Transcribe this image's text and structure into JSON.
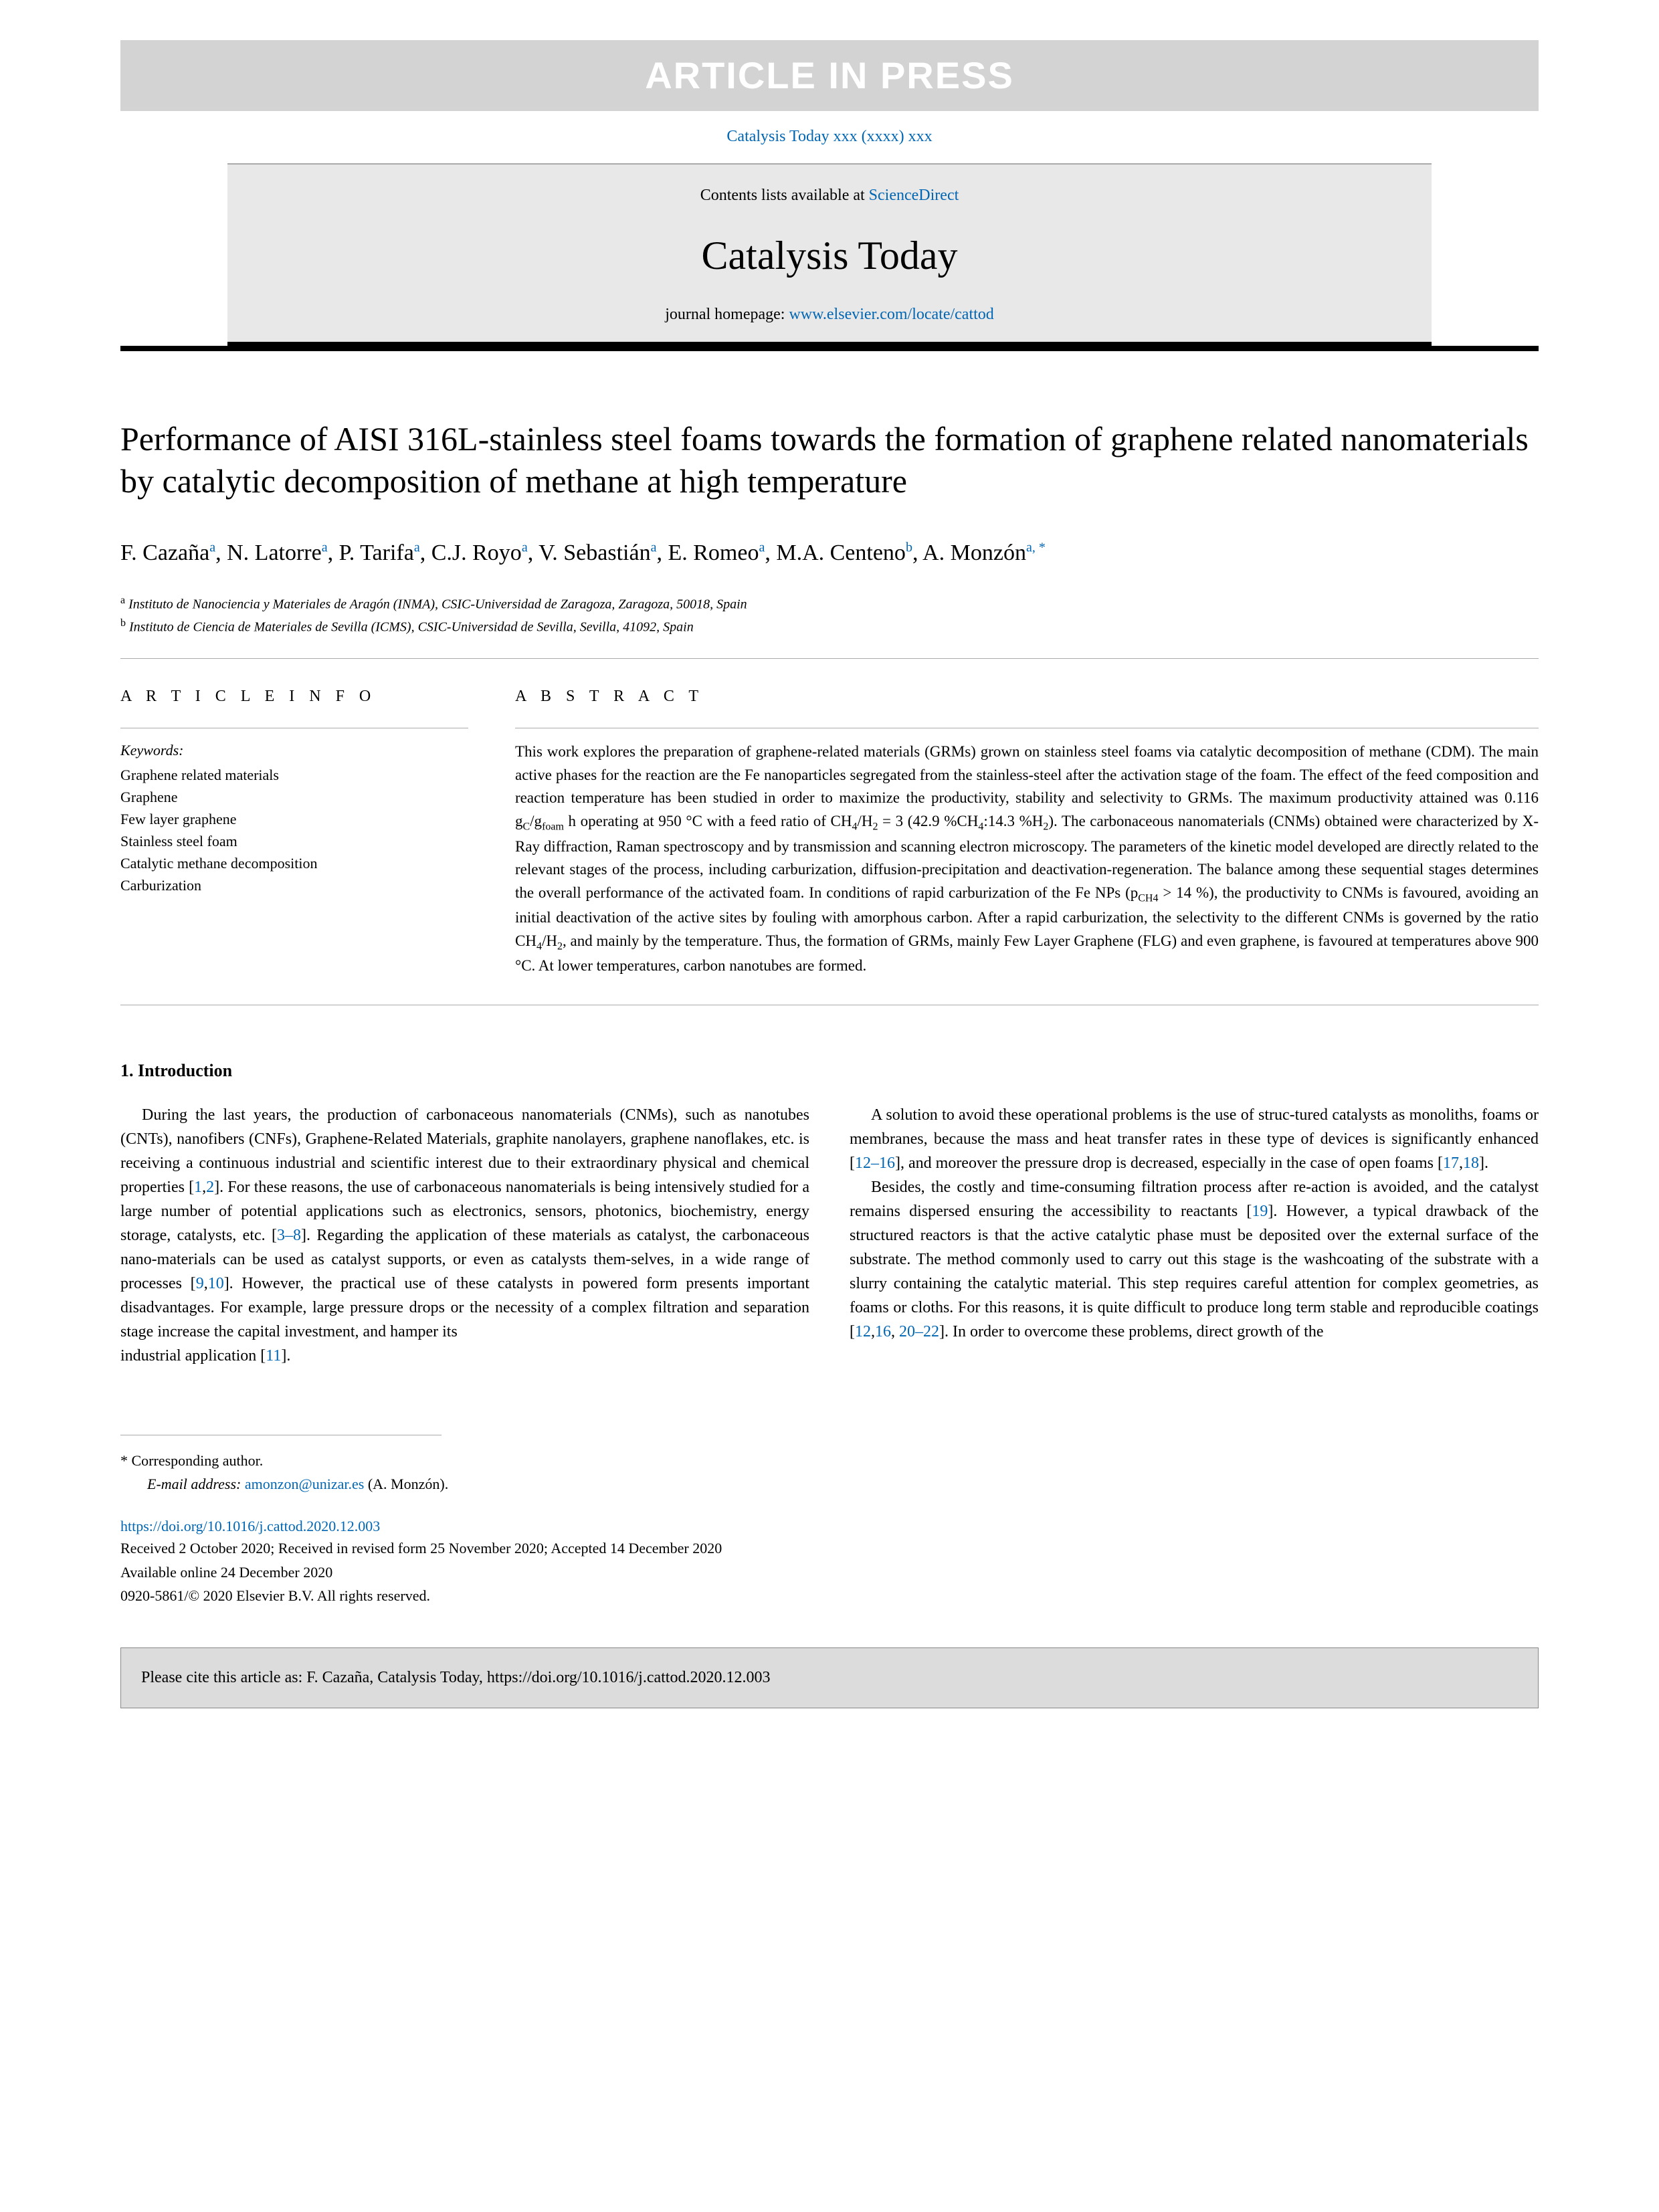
{
  "banner": "ARTICLE IN PRESS",
  "journalRef": "Catalysis Today xxx (xxxx) xxx",
  "contentsAvailable": "Contents lists available at ",
  "scienceDirect": "ScienceDirect",
  "journalName": "Catalysis Today",
  "homepagePrefix": "journal homepage: ",
  "homepageUrl": "www.elsevier.com/locate/cattod",
  "paperTitle": "Performance of AISI 316L-stainless steel foams towards the formation of graphene related nanomaterials by catalytic decomposition of methane at high temperature",
  "authorsHtml": "F. Cazaña<sup>a</sup>, N. Latorre<sup>a</sup>, P. Tarifa<sup>a</sup>, C.J. Royo<sup>a</sup>, V. Sebastián<sup>a</sup>, E. Romeo<sup>a</sup>, M.A. Centeno<sup>b</sup>, A. Monzón<sup>a, *</sup>",
  "affiliations": [
    {
      "marker": "a",
      "text": "Instituto de Nanociencia y Materiales de Aragón (INMA), CSIC-Universidad de Zaragoza, Zaragoza, 50018, Spain"
    },
    {
      "marker": "b",
      "text": "Instituto de Ciencia de Materiales de Sevilla (ICMS), CSIC-Universidad de Sevilla, Sevilla, 41092, Spain"
    }
  ],
  "articleInfoHeading": "A R T I C L E  I N F O",
  "keywordsLabel": "Keywords:",
  "keywords": [
    "Graphene related materials",
    "Graphene",
    "Few layer graphene",
    "Stainless steel foam",
    "Catalytic methane decomposition",
    "Carburization"
  ],
  "abstractHeading": "A B S T R A C T",
  "abstractHtml": "This work explores the preparation of graphene-related materials (GRMs) grown on stainless steel foams via catalytic decomposition of methane (CDM). The main active phases for the reaction are the Fe nanoparticles segregated from the stainless-steel after the activation stage of the foam. The effect of the feed composition and reaction temperature has been studied in order to maximize the productivity, stability and selectivity to GRMs. The maximum productivity attained was 0.116 g<sub>C</sub>/g<sub>foam</sub> h operating at 950 °C with a feed ratio of CH<sub>4</sub>/H<sub>2</sub> = 3 (42.9 %CH<sub>4</sub>:14.3 %H<sub>2</sub>). The carbonaceous nanomaterials (CNMs) obtained were characterized by X-Ray diffraction, Raman spectroscopy and by transmission and scanning electron microscopy. The parameters of the kinetic model developed are directly related to the relevant stages of the process, including carburization, diffusion-precipitation and deactivation-regeneration. The balance among these sequential stages determines the overall performance of the activated foam. In conditions of rapid carburization of the Fe NPs (p<sub>CH4</sub> > 14 %), the productivity to CNMs is favoured, avoiding an initial deactivation of the active sites by fouling with amorphous carbon. After a rapid carburization, the selectivity to the different CNMs is governed by the ratio CH<sub>4</sub>/H<sub>2</sub>, and mainly by the temperature. Thus, the formation of GRMs, mainly Few Layer Graphene (FLG) and even graphene, is favoured at temperatures above 900 °C. At lower temperatures, carbon nanotubes are formed.",
  "introHeading": "1. Introduction",
  "introCol1Html": "During the last years, the production of carbonaceous nanomaterials (CNMs), such as nanotubes (CNTs), nanofibers (CNFs), Graphene-Related Materials, graphite nanolayers, graphene nanoflakes, etc. is receiving a continuous industrial and scientific interest due to their extraordinary physical and chemical properties [<a>1</a>,<a>2</a>]. For these reasons, the use of carbonaceous nanomaterials is being intensively studied for a large number of potential applications such as electronics, sensors, photonics, biochemistry, energy storage, catalysts, etc. [<a>3–8</a>]. Regarding the application of these materials as catalyst, the carbonaceous nano-materials can be used as catalyst supports, or even as catalysts them-selves, in a wide range of processes [<a>9</a>,<a>10</a>]. However, the practical use of these catalysts in powered form presents important disadvantages. For example, large pressure drops or the necessity of a complex filtration and separation stage increase the capital investment, and hamper its",
  "introCol2aHtml": "industrial application [<a>11</a>].",
  "introCol2bHtml": "A solution to avoid these operational problems is the use of struc-tured catalysts as monoliths, foams or membranes, because the mass and heat transfer rates in these type of devices is significantly enhanced [<a>12–16</a>], and moreover the pressure drop is decreased, especially in the case of open foams [<a>17</a>,<a>18</a>].",
  "introCol2cHtml": "Besides, the costly and time-consuming filtration process after re-action is avoided, and the catalyst remains dispersed ensuring the accessibility to reactants [<a>19</a>]. However, a typical drawback of the structured reactors is that the active catalytic phase must be deposited over the external surface of the substrate. The method commonly used to carry out this stage is the washcoating of the substrate with a slurry containing the catalytic material. This step requires careful attention for complex geometries, as foams or cloths. For this reasons, it is quite difficult to produce long term stable and reproducible coatings [<a>12</a>,<a>16</a>, <a>20–22</a>]. In order to overcome these problems, direct growth of the",
  "correspondingLabel": "* Corresponding author.",
  "emailLabel": "E-mail address: ",
  "email": "amonzon@unizar.es",
  "emailSuffix": " (A. Monzón).",
  "doi": "https://doi.org/10.1016/j.cattod.2020.12.003",
  "received": "Received 2 October 2020; Received in revised form 25 November 2020; Accepted 14 December 2020",
  "availableOnline": "Available online 24 December 2020",
  "copyright": "0920-5861/© 2020 Elsevier B.V. All rights reserved.",
  "citeAs": "Please cite this article as: F. Cazaña, Catalysis Today, https://doi.org/10.1016/j.cattod.2020.12.003",
  "colors": {
    "link": "#0066b3",
    "bannerBg": "#d3d3d3",
    "boxBg": "#e8e8e8"
  }
}
